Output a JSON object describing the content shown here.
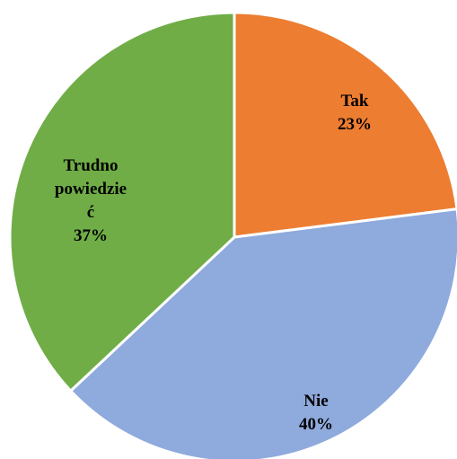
{
  "chart_data": {
    "type": "pie",
    "title": "",
    "legend": "none",
    "start_angle_deg": 0,
    "direction": "clockwise",
    "slices": [
      {
        "label_lines": [
          "Tak"
        ],
        "value": 23,
        "value_label": "23%",
        "color": "#ED7D31"
      },
      {
        "label_lines": [
          "Nie"
        ],
        "value": 40,
        "value_label": "40%",
        "color": "#8FAADC"
      },
      {
        "label_lines": [
          "Trudno",
          "powiedzie",
          "ć"
        ],
        "value": 37,
        "value_label": "37%",
        "color": "#70AD47"
      }
    ]
  }
}
